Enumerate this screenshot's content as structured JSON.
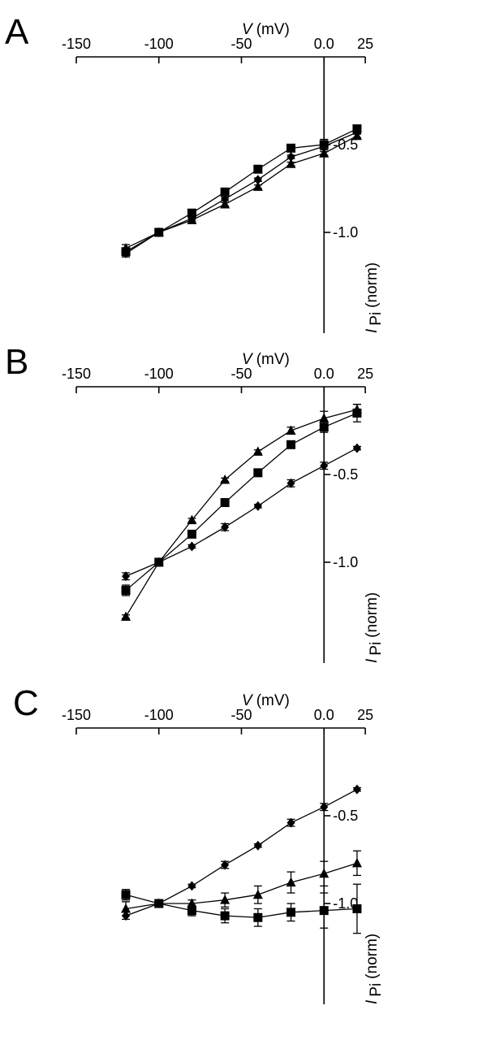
{
  "chart_data": [
    {
      "panel": "A",
      "type": "line",
      "xlabel": {
        "symbol": "V",
        "unit": "(mV)"
      },
      "ylabel": {
        "symbol": "I",
        "subscript": "Pi",
        "unit": "(norm)"
      },
      "x_ticks": [
        "-150",
        "-100",
        "-50",
        "0.0",
        "25"
      ],
      "y_ticks": [
        "-0.5",
        "-1.0"
      ],
      "xlim": [
        -150,
        25
      ],
      "ylim": [
        -1.5,
        0
      ],
      "grid": false,
      "series": [
        {
          "marker": "square",
          "points": [
            {
              "x": -120,
              "y": -1.11,
              "err": 0.02
            },
            {
              "x": -100,
              "y": -1.0,
              "err": 0
            },
            {
              "x": -80,
              "y": -0.89,
              "err": 0.01
            },
            {
              "x": -60,
              "y": -0.77,
              "err": 0.01
            },
            {
              "x": -40,
              "y": -0.64,
              "err": 0.01
            },
            {
              "x": -20,
              "y": -0.52,
              "err": 0.01
            },
            {
              "x": 0,
              "y": -0.5,
              "err": 0.03
            },
            {
              "x": 20,
              "y": -0.41,
              "err": 0.01
            }
          ]
        },
        {
          "marker": "diamond",
          "points": [
            {
              "x": -120,
              "y": -1.12,
              "err": 0.02
            },
            {
              "x": -100,
              "y": -1.0,
              "err": 0
            },
            {
              "x": -80,
              "y": -0.92,
              "err": 0.01
            },
            {
              "x": -60,
              "y": -0.81,
              "err": 0.01
            },
            {
              "x": -40,
              "y": -0.7,
              "err": 0.01
            },
            {
              "x": -20,
              "y": -0.57,
              "err": 0.01
            },
            {
              "x": 0,
              "y": -0.51,
              "err": 0.02
            },
            {
              "x": 20,
              "y": -0.43,
              "err": 0.01
            }
          ]
        },
        {
          "marker": "triangle",
          "points": [
            {
              "x": -120,
              "y": -1.09,
              "err": 0.02
            },
            {
              "x": -100,
              "y": -1.0,
              "err": 0
            },
            {
              "x": -80,
              "y": -0.93,
              "err": 0.01
            },
            {
              "x": -60,
              "y": -0.84,
              "err": 0.01
            },
            {
              "x": -40,
              "y": -0.74,
              "err": 0.01
            },
            {
              "x": -20,
              "y": -0.61,
              "err": 0.01
            },
            {
              "x": 0,
              "y": -0.55,
              "err": 0.01
            },
            {
              "x": 20,
              "y": -0.45,
              "err": 0.01
            }
          ]
        }
      ]
    },
    {
      "panel": "B",
      "type": "line",
      "xlabel": {
        "symbol": "V",
        "unit": "(mV)"
      },
      "ylabel": {
        "symbol": "I",
        "subscript": "Pi",
        "unit": "(norm)"
      },
      "x_ticks": [
        "-150",
        "-100",
        "-50",
        "0.0",
        "25"
      ],
      "y_ticks": [
        "-0.5",
        "-1.0"
      ],
      "xlim": [
        -150,
        25
      ],
      "ylim": [
        -1.5,
        0
      ],
      "grid": false,
      "series": [
        {
          "marker": "square",
          "points": [
            {
              "x": -120,
              "y": -1.16,
              "err": 0.03
            },
            {
              "x": -100,
              "y": -1.0,
              "err": 0
            },
            {
              "x": -80,
              "y": -0.84,
              "err": 0.01
            },
            {
              "x": -60,
              "y": -0.66,
              "err": 0.01
            },
            {
              "x": -40,
              "y": -0.49,
              "err": 0.02
            },
            {
              "x": -20,
              "y": -0.33,
              "err": 0.02
            },
            {
              "x": 0,
              "y": -0.23,
              "err": 0.03
            },
            {
              "x": 20,
              "y": -0.15,
              "err": 0.05
            }
          ]
        },
        {
          "marker": "diamond",
          "points": [
            {
              "x": -120,
              "y": -1.08,
              "err": 0.02
            },
            {
              "x": -100,
              "y": -1.0,
              "err": 0
            },
            {
              "x": -80,
              "y": -0.91,
              "err": 0.01
            },
            {
              "x": -60,
              "y": -0.8,
              "err": 0.02
            },
            {
              "x": -40,
              "y": -0.68,
              "err": 0.01
            },
            {
              "x": -20,
              "y": -0.55,
              "err": 0.02
            },
            {
              "x": 0,
              "y": -0.45,
              "err": 0.02
            },
            {
              "x": 20,
              "y": -0.35,
              "err": 0.01
            }
          ]
        },
        {
          "marker": "triangle",
          "points": [
            {
              "x": -120,
              "y": -1.31,
              "err": 0.01
            },
            {
              "x": -100,
              "y": -1.0,
              "err": 0
            },
            {
              "x": -80,
              "y": -0.76,
              "err": 0.01
            },
            {
              "x": -60,
              "y": -0.53,
              "err": 0.01
            },
            {
              "x": -40,
              "y": -0.37,
              "err": 0.01
            },
            {
              "x": -20,
              "y": -0.25,
              "err": 0.02
            },
            {
              "x": 0,
              "y": -0.18,
              "err": 0.04
            },
            {
              "x": 20,
              "y": -0.13,
              "err": 0.03
            }
          ]
        }
      ]
    },
    {
      "panel": "C",
      "type": "line",
      "xlabel": {
        "symbol": "V",
        "unit": "(mV)"
      },
      "ylabel": {
        "symbol": "I",
        "subscript": "Pi",
        "unit": "(norm)"
      },
      "x_ticks": [
        "-150",
        "-100",
        "-50",
        "0.0",
        "25"
      ],
      "y_ticks": [
        "-0.5",
        "-1.0"
      ],
      "xlim": [
        -150,
        25
      ],
      "ylim": [
        -1.5,
        0
      ],
      "grid": false,
      "series": [
        {
          "marker": "square",
          "points": [
            {
              "x": -120,
              "y": -0.95,
              "err": 0.03
            },
            {
              "x": -100,
              "y": -1.0,
              "err": 0
            },
            {
              "x": -80,
              "y": -1.04,
              "err": 0.03
            },
            {
              "x": -60,
              "y": -1.07,
              "err": 0.04
            },
            {
              "x": -40,
              "y": -1.08,
              "err": 0.05
            },
            {
              "x": -20,
              "y": -1.05,
              "err": 0.05
            },
            {
              "x": 0,
              "y": -1.04,
              "err": 0.1
            },
            {
              "x": 20,
              "y": -1.03,
              "err": 0.14
            }
          ]
        },
        {
          "marker": "diamond",
          "points": [
            {
              "x": -120,
              "y": -1.07,
              "err": 0.02
            },
            {
              "x": -100,
              "y": -1.0,
              "err": 0
            },
            {
              "x": -80,
              "y": -0.9,
              "err": 0.01
            },
            {
              "x": -60,
              "y": -0.78,
              "err": 0.02
            },
            {
              "x": -40,
              "y": -0.67,
              "err": 0.01
            },
            {
              "x": -20,
              "y": -0.54,
              "err": 0.02
            },
            {
              "x": 0,
              "y": -0.45,
              "err": 0.02
            },
            {
              "x": 20,
              "y": -0.35,
              "err": 0.01
            }
          ]
        },
        {
          "marker": "triangle",
          "points": [
            {
              "x": -120,
              "y": -1.03,
              "err": 0.04
            },
            {
              "x": -100,
              "y": -1.0,
              "err": 0
            },
            {
              "x": -80,
              "y": -1.0,
              "err": 0.02
            },
            {
              "x": -60,
              "y": -0.98,
              "err": 0.04
            },
            {
              "x": -40,
              "y": -0.95,
              "err": 0.05
            },
            {
              "x": -20,
              "y": -0.88,
              "err": 0.06
            },
            {
              "x": 0,
              "y": -0.83,
              "err": 0.07
            },
            {
              "x": 20,
              "y": -0.77,
              "err": 0.07
            }
          ]
        }
      ]
    }
  ]
}
